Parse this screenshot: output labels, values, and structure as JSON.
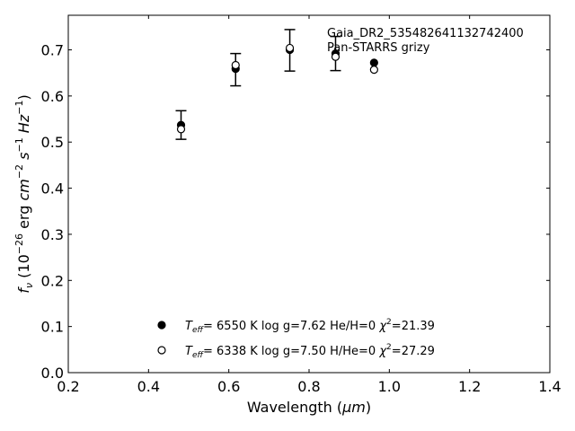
{
  "chart_data": {
    "type": "scatter",
    "title": "",
    "annotations": [
      "Gaia_DR2_535482641132742400",
      "Pan-STARRS grizy"
    ],
    "xlabel": "Wavelength (μm)",
    "ylabel": "fν (10⁻²⁶ erg cm⁻² s⁻¹ Hz⁻¹)",
    "xlim": [
      0.2,
      1.4
    ],
    "ylim": [
      0.0,
      0.775
    ],
    "xticks": [
      0.2,
      0.4,
      0.6,
      0.8,
      1.0,
      1.2,
      1.4
    ],
    "xtick_labels": [
      "0.2",
      "0.4",
      "0.6",
      "0.8",
      "1.0",
      "1.2",
      "1.4"
    ],
    "yticks": [
      0.0,
      0.1,
      0.2,
      0.3,
      0.4,
      0.5,
      0.6,
      0.7
    ],
    "ytick_labels": [
      "0.0",
      "0.1",
      "0.2",
      "0.3",
      "0.4",
      "0.5",
      "0.6",
      "0.7"
    ],
    "grid": false,
    "legend_position": "bottom-center",
    "observed": {
      "x": [
        0.481,
        0.617,
        0.752,
        0.866
      ],
      "y": [
        0.537,
        0.657,
        0.699,
        0.692
      ],
      "yerr": [
        0.031,
        0.035,
        0.045,
        0.037
      ]
    },
    "series": [
      {
        "name": "T_eff=  6550 K  log g=7.62  He/H=0  χ²=21.39",
        "marker": "filled-circle",
        "x": [
          0.481,
          0.617,
          0.752,
          0.866,
          0.962
        ],
        "y": [
          0.537,
          0.659,
          0.7,
          0.692,
          0.672
        ]
      },
      {
        "name": "T_eff=  6338 K  log g=7.50  H/He=0  χ²=27.29",
        "marker": "open-circle",
        "x": [
          0.481,
          0.617,
          0.752,
          0.866,
          0.962
        ],
        "y": [
          0.528,
          0.667,
          0.704,
          0.685,
          0.657
        ]
      }
    ],
    "legend": [
      {
        "teff": "6550",
        "logg": "7.62",
        "comp": "He/H=0",
        "chi2": "21.39",
        "marker": "filled-circle"
      },
      {
        "teff": "6338",
        "logg": "7.50",
        "comp": "H/He=0",
        "chi2": "27.29",
        "marker": "open-circle"
      }
    ],
    "colors": {
      "marker": "#000000",
      "axis": "#000000",
      "background": "#ffffff"
    }
  }
}
